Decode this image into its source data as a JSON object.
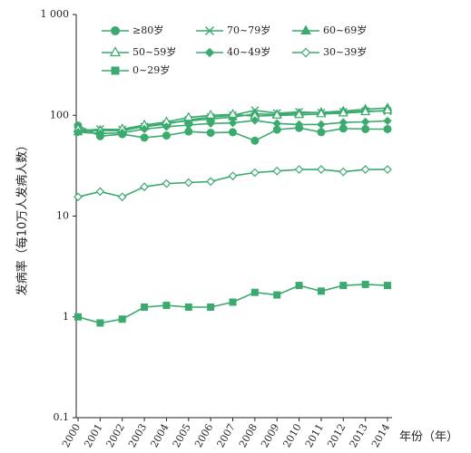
{
  "chart_data": {
    "type": "line",
    "title": "",
    "xlabel": "年份（年）",
    "ylabel": "发病率（每10万人发病人数）",
    "yscale": "log",
    "ylim": [
      0.1,
      1000
    ],
    "y_ticks": [
      "0.1",
      "1",
      "10",
      "100",
      "1 000"
    ],
    "grid": false,
    "legend_position": "top",
    "series_color": "#3aaa6e",
    "categories": [
      "2000",
      "2001",
      "2002",
      "2003",
      "2004",
      "2005",
      "2006",
      "2007",
      "2008",
      "2009",
      "2010",
      "2011",
      "2012",
      "2013",
      "2014"
    ],
    "series": [
      {
        "name": "≥80岁",
        "marker": "circle-filled",
        "values": [
          79,
          62,
          65,
          60,
          63,
          69,
          67,
          68,
          56,
          72,
          75,
          68,
          74,
          73,
          73
        ]
      },
      {
        "name": "70~79岁",
        "marker": "x",
        "values": [
          70,
          73,
          72,
          77,
          82,
          90,
          96,
          100,
          112,
          105,
          108,
          106,
          108,
          110,
          110
        ]
      },
      {
        "name": "60~69岁",
        "marker": "triangle-filled",
        "values": [
          68,
          71,
          70,
          78,
          84,
          88,
          92,
          96,
          103,
          102,
          105,
          107,
          110,
          115,
          118
        ]
      },
      {
        "name": "50~59岁",
        "marker": "triangle-open",
        "values": [
          73,
          70,
          73,
          80,
          86,
          95,
          100,
          102,
          98,
          100,
          101,
          103,
          105,
          108,
          112
        ]
      },
      {
        "name": "40~49岁",
        "marker": "diamond-filled",
        "values": [
          68,
          66,
          67,
          73,
          77,
          80,
          83,
          84,
          89,
          83,
          81,
          81,
          85,
          86,
          88
        ]
      },
      {
        "name": "30~39岁",
        "marker": "diamond-open",
        "values": [
          15.5,
          17.5,
          15.5,
          19.5,
          21,
          21.5,
          22,
          25,
          27,
          28,
          29,
          29,
          27.5,
          29,
          29
        ]
      },
      {
        "name": "0~29岁",
        "marker": "square-filled",
        "values": [
          1.0,
          0.87,
          0.95,
          1.25,
          1.3,
          1.25,
          1.25,
          1.4,
          1.75,
          1.65,
          2.05,
          1.8,
          2.05,
          2.1,
          2.05
        ]
      }
    ]
  }
}
